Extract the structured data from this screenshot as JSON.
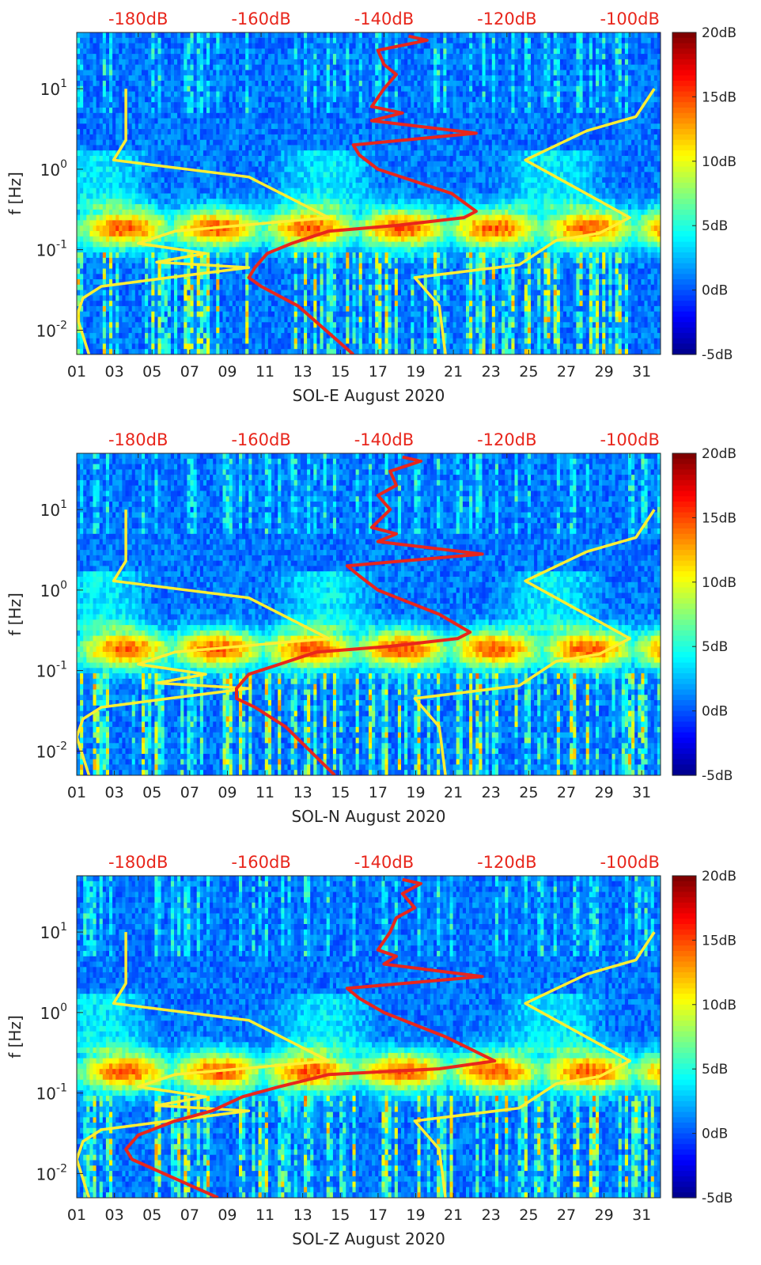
{
  "chart_data": [
    {
      "type": "heatmap",
      "title": "",
      "xlabel": "SOL-E August 2020",
      "ylabel": "f [Hz]",
      "x_ticks": [
        "01",
        "03",
        "05",
        "07",
        "09",
        "11",
        "13",
        "15",
        "17",
        "19",
        "21",
        "23",
        "25",
        "27",
        "29",
        "31"
      ],
      "x_range_days": [
        1,
        32
      ],
      "y_ticks": [
        "10^-2",
        "10^-1",
        "10^0",
        "10^1"
      ],
      "y_range_hz": [
        0.005,
        50
      ],
      "top_axis_ticks": [
        "-180dB",
        "-160dB",
        "-140dB",
        "-120dB",
        "-100dB"
      ],
      "top_axis_range_db": [
        -190,
        -95
      ],
      "colorbar_ticks": [
        "20dB",
        "15dB",
        "10dB",
        "5dB",
        "0dB",
        "-5dB"
      ],
      "colorbar_range_db": [
        -5,
        20
      ],
      "colormap": "jet",
      "series": [
        {
          "name": "yellow-bound-left",
          "color": "#ffee33",
          "points": [
            [
              -182,
              10
            ],
            [
              -182,
              2.3
            ],
            [
              -184,
              1.3
            ],
            [
              -162,
              0.8
            ],
            [
              -149,
              0.25
            ],
            [
              -174,
              0.17
            ],
            [
              -180,
              0.12
            ],
            [
              -169,
              0.09
            ],
            [
              -177,
              0.07
            ],
            [
              -162,
              0.06
            ],
            [
              -175,
              0.045
            ],
            [
              -186,
              0.035
            ],
            [
              -189,
              0.025
            ],
            [
              -190,
              0.015
            ],
            [
              -188,
              0.005
            ]
          ]
        },
        {
          "name": "yellow-bound-right",
          "color": "#ffee33",
          "points": [
            [
              -96,
              10
            ],
            [
              -99,
              4.5
            ],
            [
              -107,
              3
            ],
            [
              -117,
              1.3
            ],
            [
              -100,
              0.25
            ],
            [
              -105,
              0.16
            ],
            [
              -112,
              0.13
            ],
            [
              -118,
              0.065
            ],
            [
              -135,
              0.045
            ],
            [
              -131,
              0.02
            ],
            [
              -130,
              0.005
            ]
          ]
        },
        {
          "name": "red-median-psd",
          "color": "#e8261c",
          "points": [
            [
              -136,
              45
            ],
            [
              -133,
              40
            ],
            [
              -141,
              30
            ],
            [
              -140,
              20
            ],
            [
              -138,
              15
            ],
            [
              -140,
              10
            ],
            [
              -142,
              6
            ],
            [
              -137,
              5
            ],
            [
              -142,
              4
            ],
            [
              -125,
              2.8
            ],
            [
              -145,
              2
            ],
            [
              -144,
              1.5
            ],
            [
              -141,
              1
            ],
            [
              -129,
              0.5
            ],
            [
              -125,
              0.3
            ],
            [
              -127,
              0.25
            ],
            [
              -138,
              0.2
            ],
            [
              -149,
              0.17
            ],
            [
              -155,
              0.12
            ],
            [
              -159,
              0.09
            ],
            [
              -161,
              0.06
            ],
            [
              -162,
              0.045
            ],
            [
              -160,
              0.035
            ],
            [
              -154,
              0.02
            ],
            [
              -145,
              0.005
            ]
          ]
        }
      ]
    },
    {
      "type": "heatmap",
      "title": "",
      "xlabel": "SOL-N August 2020",
      "ylabel": "f [Hz]",
      "x_ticks": [
        "01",
        "03",
        "05",
        "07",
        "09",
        "11",
        "13",
        "15",
        "17",
        "19",
        "21",
        "23",
        "25",
        "27",
        "29",
        "31"
      ],
      "x_range_days": [
        1,
        32
      ],
      "y_ticks": [
        "10^-2",
        "10^-1",
        "10^0",
        "10^1"
      ],
      "y_range_hz": [
        0.005,
        50
      ],
      "top_axis_ticks": [
        "-180dB",
        "-160dB",
        "-140dB",
        "-120dB",
        "-100dB"
      ],
      "top_axis_range_db": [
        -190,
        -95
      ],
      "colorbar_ticks": [
        "20dB",
        "15dB",
        "10dB",
        "5dB",
        "0dB",
        "-5dB"
      ],
      "colorbar_range_db": [
        -5,
        20
      ],
      "colormap": "jet",
      "series": [
        {
          "name": "yellow-bound-left",
          "color": "#ffee33",
          "points": [
            [
              -182,
              10
            ],
            [
              -182,
              2.3
            ],
            [
              -184,
              1.3
            ],
            [
              -162,
              0.8
            ],
            [
              -149,
              0.25
            ],
            [
              -174,
              0.17
            ],
            [
              -180,
              0.12
            ],
            [
              -169,
              0.09
            ],
            [
              -177,
              0.07
            ],
            [
              -162,
              0.06
            ],
            [
              -175,
              0.045
            ],
            [
              -186,
              0.035
            ],
            [
              -189,
              0.025
            ],
            [
              -190,
              0.015
            ],
            [
              -188,
              0.005
            ]
          ]
        },
        {
          "name": "yellow-bound-right",
          "color": "#ffee33",
          "points": [
            [
              -96,
              10
            ],
            [
              -99,
              4.5
            ],
            [
              -107,
              3
            ],
            [
              -117,
              1.3
            ],
            [
              -100,
              0.25
            ],
            [
              -105,
              0.16
            ],
            [
              -112,
              0.13
            ],
            [
              -118,
              0.065
            ],
            [
              -135,
              0.045
            ],
            [
              -131,
              0.02
            ],
            [
              -130,
              0.005
            ]
          ]
        },
        {
          "name": "red-median-psd",
          "color": "#e8261c",
          "points": [
            [
              -137,
              45
            ],
            [
              -134,
              40
            ],
            [
              -139,
              30
            ],
            [
              -138,
              20
            ],
            [
              -141,
              15
            ],
            [
              -139,
              10
            ],
            [
              -142,
              6
            ],
            [
              -138,
              5
            ],
            [
              -141,
              4
            ],
            [
              -124,
              2.8
            ],
            [
              -146,
              2
            ],
            [
              -144,
              1.5
            ],
            [
              -141,
              1
            ],
            [
              -131,
              0.5
            ],
            [
              -126,
              0.3
            ],
            [
              -128,
              0.25
            ],
            [
              -139,
              0.2
            ],
            [
              -151,
              0.17
            ],
            [
              -157,
              0.12
            ],
            [
              -162,
              0.09
            ],
            [
              -164,
              0.06
            ],
            [
              -164,
              0.045
            ],
            [
              -161,
              0.035
            ],
            [
              -156,
              0.02
            ],
            [
              -148,
              0.005
            ]
          ]
        }
      ]
    },
    {
      "type": "heatmap",
      "title": "",
      "xlabel": "SOL-Z August 2020",
      "ylabel": "f [Hz]",
      "x_ticks": [
        "01",
        "03",
        "05",
        "07",
        "09",
        "11",
        "13",
        "15",
        "17",
        "19",
        "21",
        "23",
        "25",
        "27",
        "29",
        "31"
      ],
      "x_range_days": [
        1,
        32
      ],
      "y_ticks": [
        "10^-2",
        "10^-1",
        "10^0",
        "10^1"
      ],
      "y_range_hz": [
        0.005,
        50
      ],
      "top_axis_ticks": [
        "-180dB",
        "-160dB",
        "-140dB",
        "-120dB",
        "-100dB"
      ],
      "top_axis_range_db": [
        -190,
        -95
      ],
      "colorbar_ticks": [
        "20dB",
        "15dB",
        "10dB",
        "5dB",
        "0dB",
        "-5dB"
      ],
      "colorbar_range_db": [
        -5,
        20
      ],
      "colormap": "jet",
      "series": [
        {
          "name": "yellow-bound-left",
          "color": "#ffee33",
          "points": [
            [
              -182,
              10
            ],
            [
              -182,
              2.3
            ],
            [
              -184,
              1.3
            ],
            [
              -162,
              0.8
            ],
            [
              -149,
              0.25
            ],
            [
              -174,
              0.17
            ],
            [
              -180,
              0.12
            ],
            [
              -169,
              0.09
            ],
            [
              -177,
              0.07
            ],
            [
              -162,
              0.06
            ],
            [
              -175,
              0.045
            ],
            [
              -186,
              0.035
            ],
            [
              -189,
              0.025
            ],
            [
              -190,
              0.015
            ],
            [
              -188,
              0.005
            ]
          ]
        },
        {
          "name": "yellow-bound-right",
          "color": "#ffee33",
          "points": [
            [
              -96,
              10
            ],
            [
              -99,
              4.5
            ],
            [
              -107,
              3
            ],
            [
              -117,
              1.3
            ],
            [
              -100,
              0.25
            ],
            [
              -105,
              0.16
            ],
            [
              -112,
              0.13
            ],
            [
              -118,
              0.065
            ],
            [
              -135,
              0.045
            ],
            [
              -131,
              0.02
            ],
            [
              -130,
              0.005
            ]
          ]
        },
        {
          "name": "red-median-psd",
          "color": "#e8261c",
          "points": [
            [
              -137,
              45
            ],
            [
              -134,
              40
            ],
            [
              -137,
              30
            ],
            [
              -135,
              20
            ],
            [
              -138,
              15
            ],
            [
              -139,
              10
            ],
            [
              -141,
              6
            ],
            [
              -138,
              5
            ],
            [
              -140,
              4
            ],
            [
              -124,
              2.8
            ],
            [
              -146,
              2
            ],
            [
              -144,
              1.5
            ],
            [
              -140,
              1
            ],
            [
              -130,
              0.5
            ],
            [
              -122,
              0.25
            ],
            [
              -131,
              0.2
            ],
            [
              -149,
              0.17
            ],
            [
              -157,
              0.12
            ],
            [
              -163,
              0.09
            ],
            [
              -168,
              0.06
            ],
            [
              -174,
              0.045
            ],
            [
              -180,
              0.03
            ],
            [
              -182,
              0.02
            ],
            [
              -181,
              0.015
            ],
            [
              -167,
              0.005
            ]
          ]
        }
      ]
    }
  ]
}
